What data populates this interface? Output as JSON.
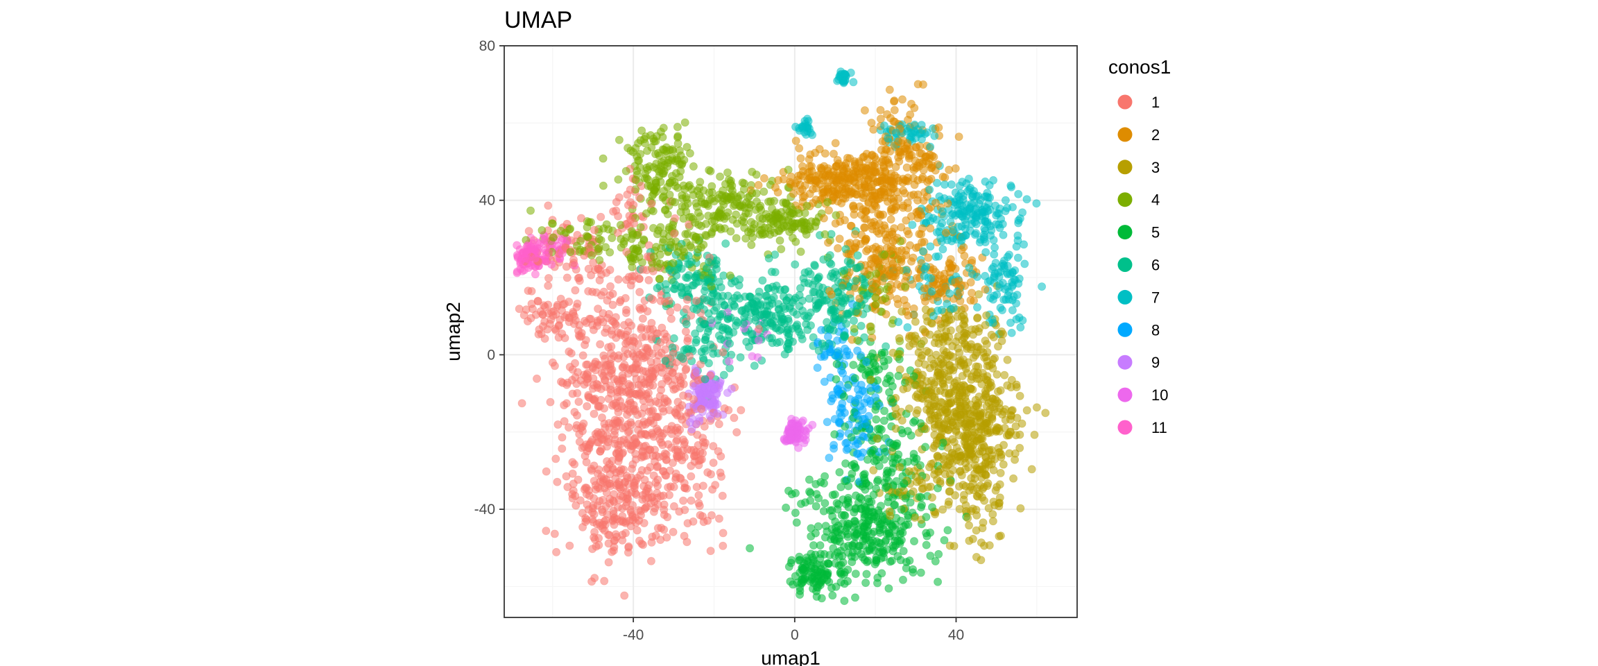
{
  "chart_data": {
    "type": "scatter",
    "title": "UMAP",
    "xlabel": "umap1",
    "ylabel": "umap2",
    "xlim": [
      -72,
      70
    ],
    "ylim": [
      -68,
      80
    ],
    "x_ticks": [
      -40,
      0,
      40
    ],
    "y_ticks": [
      -40,
      0,
      40,
      80
    ],
    "x_tick_labels": [
      "-40",
      "0",
      "40"
    ],
    "y_tick_labels": [
      "-40",
      "0",
      "40",
      "80"
    ],
    "grid": true,
    "legend": {
      "title": "conos1",
      "placement": "right"
    },
    "series": [
      {
        "name": "1",
        "color": "#F8766D",
        "clusters": [
          {
            "cx": -40,
            "cy": -10,
            "sx": 9,
            "sy": 17,
            "n": 700
          },
          {
            "cx": -45,
            "cy": -38,
            "sx": 6,
            "sy": 7,
            "n": 160
          },
          {
            "cx": -26,
            "cy": -30,
            "sx": 5,
            "sy": 10,
            "n": 90
          },
          {
            "cx": -60,
            "cy": 10,
            "sx": 4,
            "sy": 3,
            "n": 60
          },
          {
            "cx": -55,
            "cy": 28,
            "sx": 6,
            "sy": 4,
            "n": 70
          },
          {
            "cx": -40,
            "cy": 38,
            "sx": 2,
            "sy": 5,
            "n": 25
          }
        ]
      },
      {
        "name": "2",
        "color": "#DE8C00",
        "clusters": [
          {
            "cx": 12,
            "cy": 45,
            "sx": 7,
            "sy": 4,
            "n": 260
          },
          {
            "cx": 27,
            "cy": 48,
            "sx": 5,
            "sy": 8,
            "n": 200
          },
          {
            "cx": 22,
            "cy": 25,
            "sx": 6,
            "sy": 8,
            "n": 200
          },
          {
            "cx": 38,
            "cy": 20,
            "sx": 4,
            "sy": 5,
            "n": 80
          }
        ]
      },
      {
        "name": "3",
        "color": "#B79F00",
        "clusters": [
          {
            "cx": 45,
            "cy": -20,
            "sx": 5,
            "sy": 12,
            "n": 420
          },
          {
            "cx": 35,
            "cy": -10,
            "sx": 5,
            "sy": 8,
            "n": 180
          },
          {
            "cx": 40,
            "cy": 5,
            "sx": 6,
            "sy": 5,
            "n": 100
          },
          {
            "cx": 30,
            "cy": -35,
            "sx": 4,
            "sy": 5,
            "n": 40
          }
        ]
      },
      {
        "name": "4",
        "color": "#7CAE00",
        "clusters": [
          {
            "cx": -34,
            "cy": 48,
            "sx": 4,
            "sy": 5,
            "n": 130
          },
          {
            "cx": -18,
            "cy": 38,
            "sx": 8,
            "sy": 5,
            "n": 170
          },
          {
            "cx": -2,
            "cy": 34,
            "sx": 6,
            "sy": 3,
            "n": 100
          },
          {
            "cx": -45,
            "cy": 30,
            "sx": 9,
            "sy": 2.5,
            "n": 90
          },
          {
            "cx": -30,
            "cy": 25,
            "sx": 6,
            "sy": 4,
            "n": 60
          },
          {
            "cx": 20,
            "cy": 15,
            "sx": 5,
            "sy": 6,
            "n": 40
          }
        ]
      },
      {
        "name": "5",
        "color": "#00BA38",
        "clusters": [
          {
            "cx": 18,
            "cy": -45,
            "sx": 8,
            "sy": 7,
            "n": 320
          },
          {
            "cx": 5,
            "cy": -57,
            "sx": 3,
            "sy": 3,
            "n": 100
          },
          {
            "cx": 22,
            "cy": -25,
            "sx": 6,
            "sy": 6,
            "n": 110
          },
          {
            "cx": 20,
            "cy": -5,
            "sx": 5,
            "sy": 5,
            "n": 60
          }
        ]
      },
      {
        "name": "6",
        "color": "#00C08B",
        "clusters": [
          {
            "cx": -10,
            "cy": 10,
            "sx": 10,
            "sy": 5,
            "n": 250
          },
          {
            "cx": 10,
            "cy": 15,
            "sx": 6,
            "sy": 6,
            "n": 140
          },
          {
            "cx": -25,
            "cy": 20,
            "sx": 5,
            "sy": 4,
            "n": 80
          },
          {
            "cx": -25,
            "cy": 0,
            "sx": 4,
            "sy": 4,
            "n": 40
          }
        ]
      },
      {
        "name": "7",
        "color": "#00BFC4",
        "clusters": [
          {
            "cx": 43,
            "cy": 37,
            "sx": 6,
            "sy": 4,
            "n": 170
          },
          {
            "cx": 52,
            "cy": 18,
            "sx": 3,
            "sy": 6,
            "n": 80
          },
          {
            "cx": 28,
            "cy": 57,
            "sx": 3,
            "sy": 1.5,
            "n": 40
          },
          {
            "cx": 12,
            "cy": 72,
            "sx": 1,
            "sy": 1,
            "n": 22
          },
          {
            "cx": 3,
            "cy": 59,
            "sx": 1,
            "sy": 1.2,
            "n": 20
          },
          {
            "cx": 35,
            "cy": 20,
            "sx": 5,
            "sy": 6,
            "n": 50
          }
        ]
      },
      {
        "name": "8",
        "color": "#00A9FF",
        "clusters": [
          {
            "cx": 15,
            "cy": -15,
            "sx": 3.5,
            "sy": 6,
            "n": 90
          },
          {
            "cx": 10,
            "cy": 0,
            "sx": 3,
            "sy": 5,
            "n": 40
          }
        ]
      },
      {
        "name": "9",
        "color": "#C77CFF",
        "clusters": [
          {
            "cx": -22,
            "cy": -10,
            "sx": 2,
            "sy": 3.5,
            "n": 110
          }
        ]
      },
      {
        "name": "10",
        "color": "#ED68ED",
        "clusters": [
          {
            "cx": 0,
            "cy": -20,
            "sx": 1.4,
            "sy": 1.6,
            "n": 80
          },
          {
            "cx": -15,
            "cy": 2,
            "sx": 6,
            "sy": 6,
            "n": 12
          }
        ]
      },
      {
        "name": "11",
        "color": "#FF61CC",
        "clusters": [
          {
            "cx": -66,
            "cy": 25,
            "sx": 2,
            "sy": 2,
            "n": 70
          },
          {
            "cx": -61,
            "cy": 27,
            "sx": 2.5,
            "sy": 2.5,
            "n": 40
          }
        ]
      }
    ]
  }
}
